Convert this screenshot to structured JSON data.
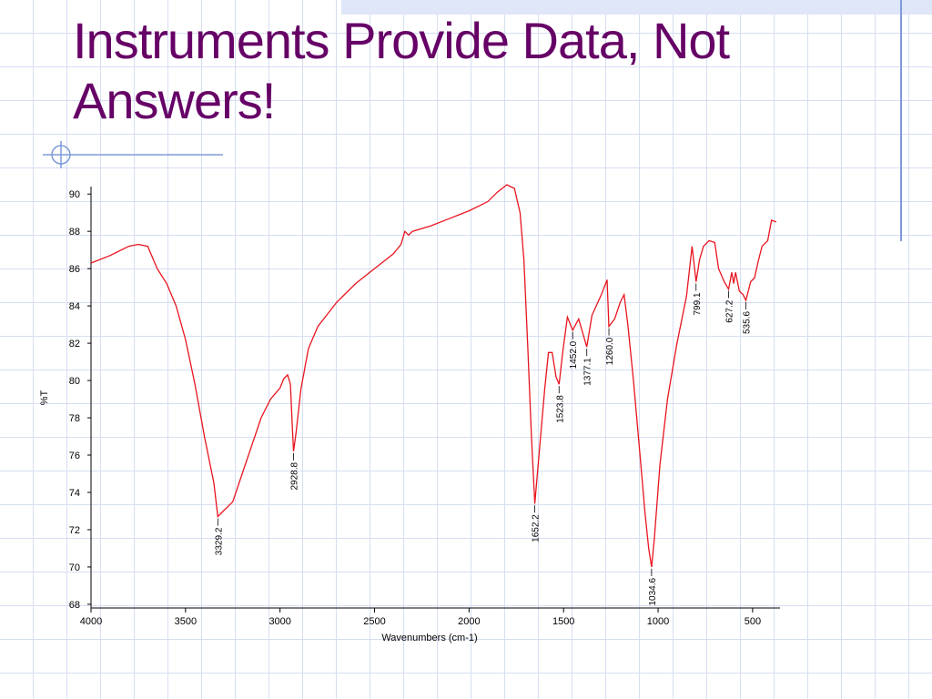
{
  "chart_data": {
    "type": "line",
    "title": "Instruments Provide Data, Not Answers!",
    "x_label": "Wavenumbers (cm-1)",
    "y_label": "%T",
    "color": "#e8141e",
    "xlim": [
      4000,
      355
    ],
    "ylim": [
      67.8,
      90.4
    ],
    "xticks": [
      4000,
      3500,
      3000,
      2500,
      2000,
      1500,
      1000,
      500
    ],
    "yticks": [
      68,
      70,
      72,
      74,
      76,
      78,
      80,
      82,
      84,
      86,
      88,
      90
    ],
    "x": [
      4000,
      3900,
      3800,
      3750,
      3700,
      3650,
      3600,
      3550,
      3500,
      3450,
      3400,
      3350,
      3329.2,
      3300,
      3250,
      3200,
      3150,
      3100,
      3050,
      3000,
      2980,
      2960,
      2945,
      2935,
      2928.8,
      2915,
      2890,
      2850,
      2800,
      2700,
      2600,
      2500,
      2400,
      2360,
      2340,
      2320,
      2300,
      2200,
      2100,
      2000,
      1900,
      1850,
      1800,
      1760,
      1730,
      1710,
      1690,
      1670,
      1652.2,
      1630,
      1600,
      1580,
      1560,
      1540,
      1523.8,
      1505,
      1480,
      1452,
      1420,
      1377.1,
      1350,
      1300,
      1270,
      1260,
      1230,
      1200,
      1180,
      1160,
      1130,
      1100,
      1070,
      1050,
      1034.6,
      1020,
      990,
      950,
      900,
      850,
      820,
      799.1,
      780,
      760,
      730,
      700,
      680,
      650,
      627.2,
      610,
      600,
      590,
      570,
      550,
      535.6,
      510,
      490,
      470,
      450,
      420,
      400,
      375
    ],
    "values": [
      86.3,
      86.7,
      87.2,
      87.3,
      87.2,
      86.0,
      85.2,
      84.0,
      82.2,
      79.8,
      77.0,
      74.5,
      72.7,
      73.0,
      73.5,
      75.0,
      76.5,
      78.0,
      79.0,
      79.6,
      80.1,
      80.3,
      79.8,
      77.5,
      76.2,
      77.2,
      79.5,
      81.7,
      82.9,
      84.2,
      85.2,
      86.0,
      86.8,
      87.3,
      88.0,
      87.8,
      88.0,
      88.3,
      88.7,
      89.1,
      89.6,
      90.1,
      90.5,
      90.3,
      89.0,
      86.5,
      82.0,
      77.0,
      73.4,
      76.0,
      79.5,
      81.5,
      81.5,
      80.2,
      79.8,
      81.5,
      83.4,
      82.7,
      83.3,
      81.8,
      83.5,
      84.6,
      85.4,
      82.9,
      83.3,
      84.2,
      84.6,
      83.0,
      80.0,
      76.5,
      73.0,
      71.0,
      70.0,
      71.5,
      75.5,
      79.0,
      82.0,
      84.5,
      87.2,
      85.3,
      86.5,
      87.2,
      87.5,
      87.4,
      86.0,
      85.3,
      84.9,
      85.8,
      85.2,
      85.8,
      84.8,
      84.6,
      84.3,
      85.3,
      85.5,
      86.4,
      87.2,
      87.5,
      88.6,
      88.5
    ],
    "peaks": [
      3329.2,
      2928.8,
      1652.2,
      1523.8,
      {
        "value": 1452,
        "label": "1452.0"
      },
      1377.1,
      {
        "value": 1260,
        "label": "1260.0"
      },
      1034.6,
      799.1,
      627.2,
      535.6
    ]
  }
}
